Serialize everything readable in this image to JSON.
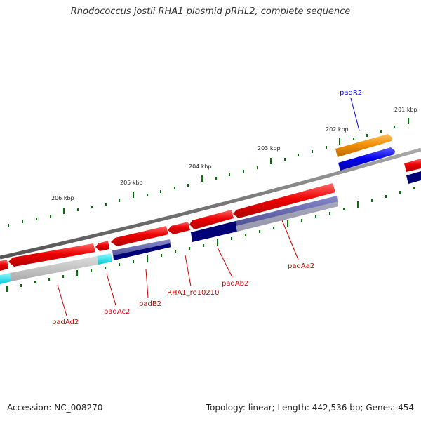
{
  "title": "Rhodococcus jostii RHA1 plasmid pRHL2, complete sequence",
  "accession": "Accession: NC_008270",
  "topology": "Topology: linear; Length: 442,536 bp; Genes: 454",
  "kbp_labels": [
    "201 kbp",
    "202 kbp",
    "203 kbp",
    "204 kbp",
    "205 kbp",
    "206 kbp"
  ],
  "gene_labels": [
    {
      "name": "padR2",
      "color": "#0000cc"
    },
    {
      "name": "padAa2",
      "color": "#cc0000"
    },
    {
      "name": "padAb2",
      "color": "#cc0000"
    },
    {
      "name": "RHA1_ro10210",
      "color": "#cc0000"
    },
    {
      "name": "padB2",
      "color": "#cc0000"
    },
    {
      "name": "padAc2",
      "color": "#cc0000"
    },
    {
      "name": "padAd2",
      "color": "#cc0000"
    }
  ],
  "colors": {
    "cds": "#ee0000",
    "gene_forward": "#0000ee",
    "regulator": "#f08c00",
    "dark_match": "#000077",
    "mid_match": "#5555aa",
    "light_match": "#bbbbbb",
    "cyan_match": "#00e5ee",
    "backbone": "#777777",
    "ticks": "#007700",
    "kbp_text": "#222222"
  }
}
